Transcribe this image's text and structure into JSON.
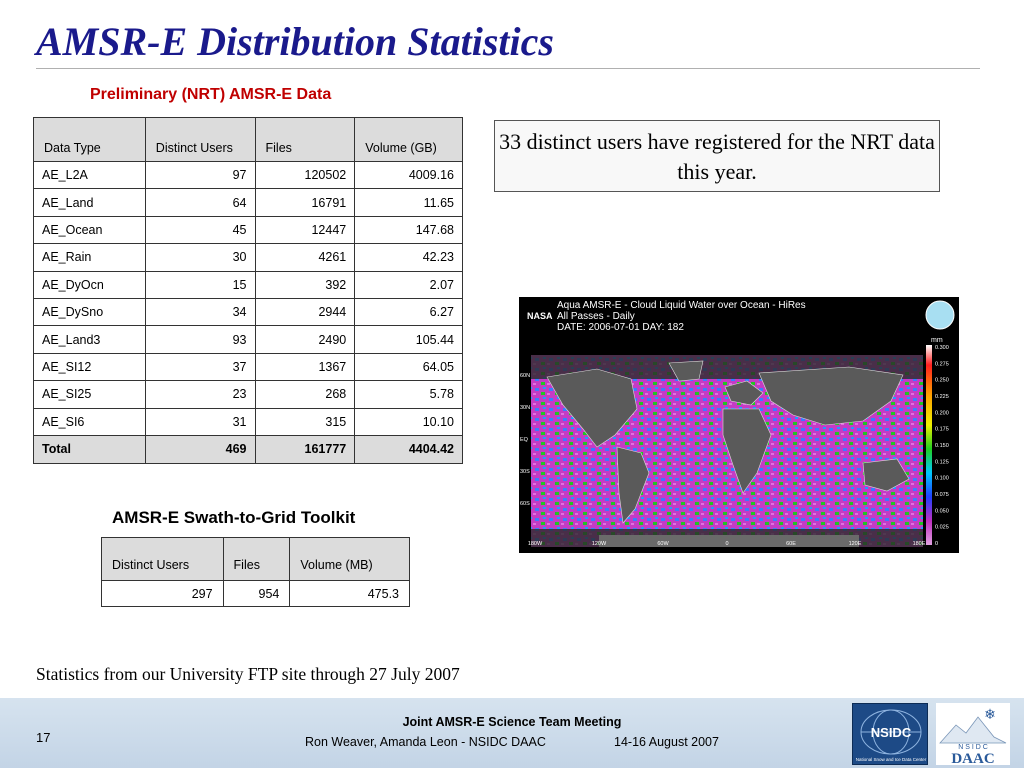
{
  "slide": {
    "title": "AMSR-E Distribution Statistics",
    "nrt_heading": "Preliminary (NRT) AMSR-E Data",
    "users_note": "33 distinct users have registered for the NRT data this year.",
    "toolkit_heading": "AMSR-E Swath-to-Grid Toolkit",
    "stats_note": "Statistics from our University FTP site through 27 July 2007"
  },
  "nrt_table": {
    "headers": [
      "Data Type",
      "Distinct Users",
      "Files",
      "Volume (GB)"
    ],
    "rows": [
      [
        "AE_L2A",
        "97",
        "120502",
        "4009.16"
      ],
      [
        "AE_Land",
        "64",
        "16791",
        "11.65"
      ],
      [
        "AE_Ocean",
        "45",
        "12447",
        "147.68"
      ],
      [
        "AE_Rain",
        "30",
        "4261",
        "42.23"
      ],
      [
        "AE_DyOcn",
        "15",
        "392",
        "2.07"
      ],
      [
        "AE_DySno",
        "34",
        "2944",
        "6.27"
      ],
      [
        "AE_Land3",
        "93",
        "2490",
        "105.44"
      ],
      [
        "AE_SI12",
        "37",
        "1367",
        "64.05"
      ],
      [
        "AE_SI25",
        "23",
        "268",
        "5.78"
      ],
      [
        "AE_SI6",
        "31",
        "315",
        "10.10"
      ]
    ],
    "total": [
      "Total",
      "469",
      "161777",
      "4404.42"
    ]
  },
  "toolkit_table": {
    "headers": [
      "Distinct Users",
      "Files",
      "Volume (MB)"
    ],
    "row": [
      "297",
      "954",
      "475.3"
    ]
  },
  "map": {
    "logo": "NASA",
    "line1": "Aqua  AMSR-E - Cloud Liquid Water over Ocean - HiRes",
    "line2": "All Passes - Daily",
    "line3": "DATE: 2006-07-01  DAY: 182",
    "unit": "mm",
    "colorbar_ticks": [
      "0.300",
      "0.275",
      "0.250",
      "0.225",
      "0.200",
      "0.175",
      "0.150",
      "0.125",
      "0.100",
      "0.075",
      "0.050",
      "0.025",
      "0"
    ],
    "lat_labels": [
      "60N",
      "30N",
      "EQ",
      "30S",
      "60S"
    ],
    "lon_labels": [
      "180W",
      "120W",
      "60W",
      "0",
      "60E",
      "120E",
      "180E"
    ],
    "colors": {
      "ocean_low": "#c43cc4",
      "ocean_mid": "#3a7cff",
      "ocean_high": "#22c422",
      "land": "#5a5a5a"
    }
  },
  "footer": {
    "slide_number": "17",
    "meeting": "Joint AMSR-E Science Team Meeting",
    "authors": "Ron Weaver, Amanda Leon - NSIDC DAAC",
    "date": "14-16 August 2007",
    "nsidc_logo": "NSIDC",
    "nsidc_tagline": "National Snow and Ice Data Center",
    "daac_logo_top": "N S I D C",
    "daac_logo_bottom": "DAAC"
  },
  "colors": {
    "title": "#1a1a8c",
    "heading": "#c00000",
    "header_fill": "#dcdcdc"
  }
}
